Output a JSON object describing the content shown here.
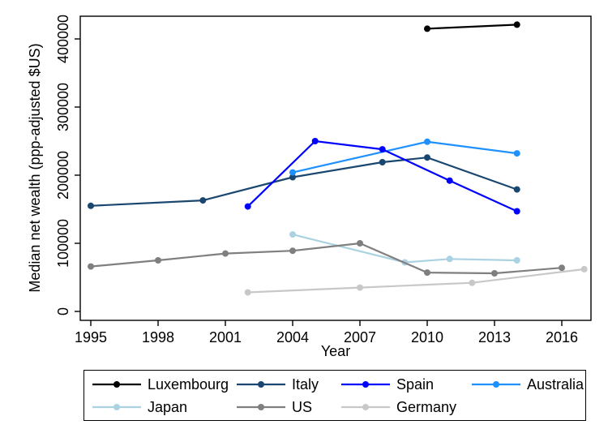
{
  "figure": {
    "background": "#ffffff"
  },
  "chart_data": {
    "type": "line",
    "title": "",
    "xlabel": "Year",
    "ylabel": "Median net wealth (ppp-adjusted $US)",
    "xticks": [
      1995,
      1998,
      2001,
      2004,
      2007,
      2010,
      2013,
      2016
    ],
    "yticks": [
      0,
      100000,
      200000,
      300000,
      400000
    ],
    "xlim": [
      1994.5,
      2017.3
    ],
    "ylim": [
      -13000,
      433000
    ],
    "grid": false,
    "legend_position": "bottom",
    "marker": "circle",
    "series": [
      {
        "name": "Luxembourg",
        "color": "#000000",
        "points": [
          [
            2010,
            415000
          ],
          [
            2014,
            421000
          ]
        ]
      },
      {
        "name": "Italy",
        "color": "#1a476f",
        "points": [
          [
            1995,
            155000
          ],
          [
            2000,
            163000
          ],
          [
            2004,
            197000
          ],
          [
            2008,
            219000
          ],
          [
            2010,
            226000
          ],
          [
            2014,
            179000
          ]
        ]
      },
      {
        "name": "Spain",
        "color": "#0000ff",
        "points": [
          [
            2002,
            154000
          ],
          [
            2005,
            250000
          ],
          [
            2008,
            238000
          ],
          [
            2011,
            192000
          ],
          [
            2014,
            147000
          ]
        ]
      },
      {
        "name": "Australia",
        "color": "#1e90ff",
        "points": [
          [
            2004,
            204000
          ],
          [
            2010,
            249000
          ],
          [
            2014,
            232000
          ]
        ]
      },
      {
        "name": "Japan",
        "color": "#aad2e2",
        "points": [
          [
            2004,
            113000
          ],
          [
            2009,
            72000
          ],
          [
            2011,
            77000
          ],
          [
            2014,
            75000
          ]
        ]
      },
      {
        "name": "US",
        "color": "#7f7f7f",
        "points": [
          [
            1995,
            66000
          ],
          [
            1998,
            75000
          ],
          [
            2001,
            85000
          ],
          [
            2004,
            89000
          ],
          [
            2007,
            100000
          ],
          [
            2010,
            57000
          ],
          [
            2013,
            56000
          ],
          [
            2016,
            64000
          ]
        ]
      },
      {
        "name": "Germany",
        "color": "#c8c8c8",
        "points": [
          [
            2002,
            28000
          ],
          [
            2007,
            35000
          ],
          [
            2012,
            42000
          ],
          [
            2017,
            62000
          ]
        ]
      }
    ]
  }
}
